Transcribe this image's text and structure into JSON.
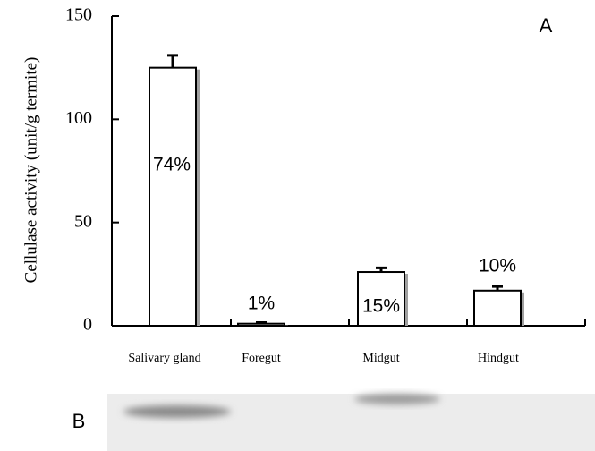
{
  "chart_data": {
    "type": "bar",
    "panel_label": "A",
    "ylabel": "Cellulase activity (unit/g termite)",
    "categories": [
      "Salivary gland",
      "Foregut",
      "Midgut",
      "Hindgut"
    ],
    "values": [
      125,
      1,
      26,
      17
    ],
    "errors": [
      6,
      0.5,
      2,
      2
    ],
    "percent_labels": [
      "74%",
      "1%",
      "15%",
      "10%"
    ],
    "color": "#ffffff",
    "edge_color": "#000000",
    "ylim": [
      0,
      150
    ],
    "yticks": [
      0,
      50,
      100,
      150
    ]
  },
  "gel": {
    "panel_label": "B"
  }
}
